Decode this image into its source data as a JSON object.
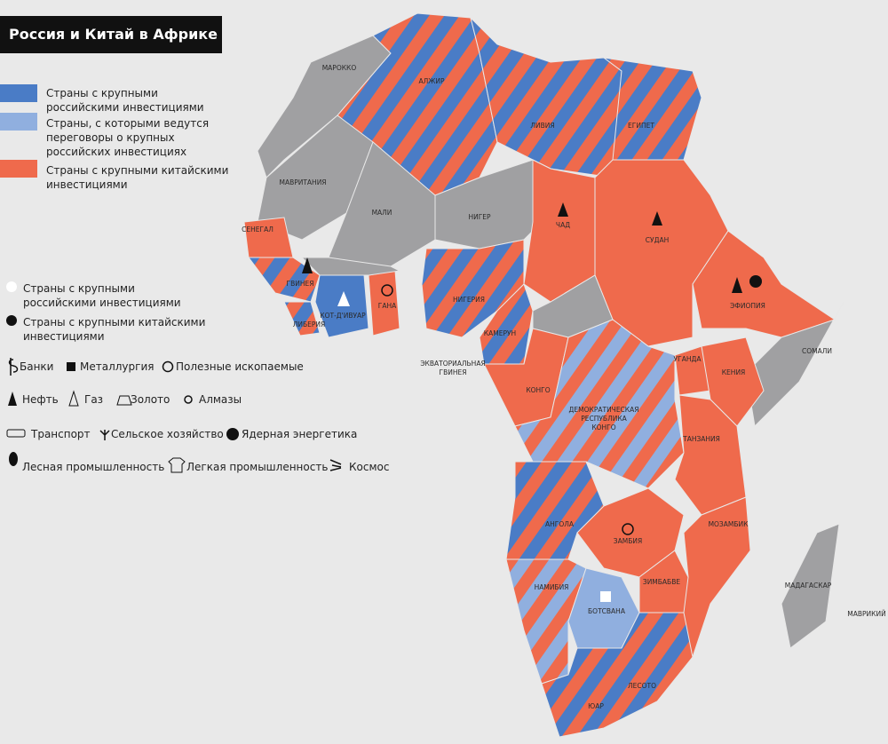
{
  "title": "Россия и Китай в Африке",
  "legend": {
    "colors": [
      "Страны с крупными российскими инвестициями",
      "Страны, с которыми ведутся переговоры о крупных российских инвестициях",
      "Страны с крупными китайскими инвестициями"
    ],
    "dots": [
      "Страны с крупными российскими инвестициями",
      "Страны с крупными китайскими инвестициями"
    ],
    "symbols": [
      "Банки",
      "Металлургия",
      "Полезные ископаемые",
      "Нефть",
      "Газ",
      "Золото",
      "Алмазы",
      "Транспорт",
      "Сельское хозяйство",
      "Ядерная энергетика",
      "Лесная промышленность",
      "Легкая промышленность",
      "Космос"
    ]
  },
  "countries": [
    "МАРОККО",
    "АЛЖИР",
    "ЛИВИЯ",
    "ЕГИПЕТ",
    "МАВРИТАНИЯ",
    "МАЛИ",
    "НИГЕР",
    "ЧАД",
    "СУДАН",
    "СЕНЕГАЛ",
    "ГВИНЕЯ",
    "ЛИБЕРИЯ",
    "КОТ-Д'ИВУАР",
    "ГАНА",
    "НИГЕРИЯ",
    "КАМЕРУН",
    [
      "ЭКВАТОРИАЛЬНАЯ",
      "ГВИНЕЯ"
    ],
    "КОНГО",
    [
      "ДЕМОКРАТИЧЕСКАЯ",
      "РЕСПУБЛИКА",
      "КОНГО"
    ],
    "ЭФИОПИЯ",
    "СОМАЛИ",
    "УГАНДА",
    "КЕНИЯ",
    "ТАНЗАНИЯ",
    "АНГОЛА",
    "ЗАМБИЯ",
    "МОЗАМБИК",
    "ЗИМБАБВЕ",
    "НАМИБИЯ",
    "БОТСВАНА",
    "ЮАР",
    "ЛЕСОТО",
    "МАДАГАСКАР",
    "МАВРИКИЙ"
  ]
}
